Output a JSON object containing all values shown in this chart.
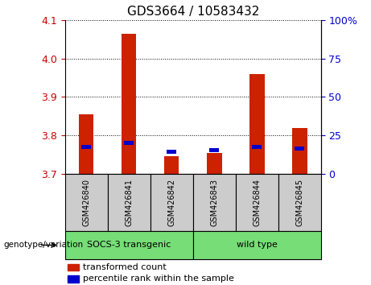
{
  "title": "GDS3664 / 10583432",
  "samples": [
    "GSM426840",
    "GSM426841",
    "GSM426842",
    "GSM426843",
    "GSM426844",
    "GSM426845"
  ],
  "red_values": [
    3.855,
    4.065,
    3.745,
    3.755,
    3.96,
    3.82
  ],
  "blue_values": [
    3.77,
    3.78,
    3.758,
    3.762,
    3.77,
    3.765
  ],
  "ylim": [
    3.7,
    4.1
  ],
  "yticks": [
    3.7,
    3.8,
    3.9,
    4.0,
    4.1
  ],
  "y2ticks": [
    0,
    25,
    50,
    75,
    100
  ],
  "y2labels": [
    "0",
    "25",
    "50",
    "75",
    "100%"
  ],
  "xlabel_color": "#cc0000",
  "y2label_color": "#0000cc",
  "bar_width": 0.35,
  "red_bar_color": "#cc2200",
  "blue_bar_color": "#0000cc",
  "sample_box_color": "#cccccc",
  "green_color": "#77dd77",
  "legend_red_label": "transformed count",
  "legend_blue_label": "percentile rank within the sample",
  "genotype_label": "genotype/variation",
  "fig_width": 4.61,
  "fig_height": 3.54,
  "dpi": 100
}
